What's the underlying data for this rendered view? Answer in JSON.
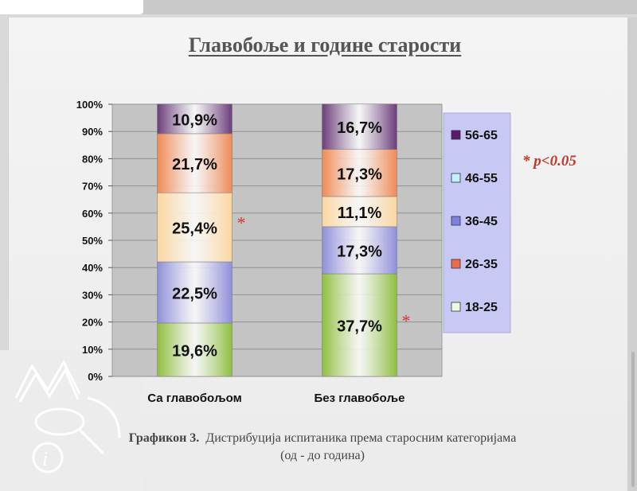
{
  "title": "Главобоље и године старости",
  "significance_note": "* p<0.05",
  "caption": {
    "label": "Графикон 3.",
    "line1": "Дистрибуција испитаника према старосним категоријама",
    "line2": "(од - до година)"
  },
  "chart_data": {
    "type": "bar",
    "stacked": true,
    "title": "Главобоље и године старости",
    "categories": [
      "Са главобољом",
      "Без главобоље"
    ],
    "ylim": [
      0,
      100
    ],
    "y_tick_labels": [
      "0%",
      "10%",
      "20%",
      "30%",
      "40%",
      "50%",
      "60%",
      "70%",
      "80%",
      "90%",
      "100%"
    ],
    "grid": true,
    "legend_position": "right",
    "series": [
      {
        "name": "18-25",
        "values": [
          19.6,
          37.7
        ],
        "labels": [
          "19,6%",
          "37,7%"
        ],
        "color": "#8fbf3f",
        "significant": [
          false,
          true
        ]
      },
      {
        "name": "26-35",
        "values": [
          22.5,
          17.3
        ],
        "labels": [
          "22,5%",
          "17,3%"
        ],
        "color": "#8f8fd9",
        "significant": [
          false,
          false
        ]
      },
      {
        "name": "36-45",
        "values": [
          25.4,
          11.1
        ],
        "labels": [
          "25,4%",
          "11,1%"
        ],
        "color": "#fad6a0",
        "significant": [
          true,
          false
        ]
      },
      {
        "name": "46-55",
        "values": [
          21.7,
          17.3
        ],
        "labels": [
          "21,7%",
          "17,3%"
        ],
        "color": "#ef8a55",
        "significant": [
          false,
          false
        ]
      },
      {
        "name": "56-65",
        "values": [
          10.9,
          16.7
        ],
        "labels": [
          "10,9%",
          "16,7%"
        ],
        "color": "#6a3d7a",
        "significant": [
          false,
          false
        ]
      }
    ],
    "legend_order": [
      "56-65",
      "46-55",
      "36-45",
      "26-35",
      "18-25"
    ],
    "legend_swatch_colors": {
      "56-65": "#5b1a6e",
      "46-55": "#bff0ff",
      "36-45": "#7f7fe0",
      "26-35": "#ef6a4a",
      "18-25": "#eef8e0"
    },
    "asterisk_color": "#d9362b"
  }
}
